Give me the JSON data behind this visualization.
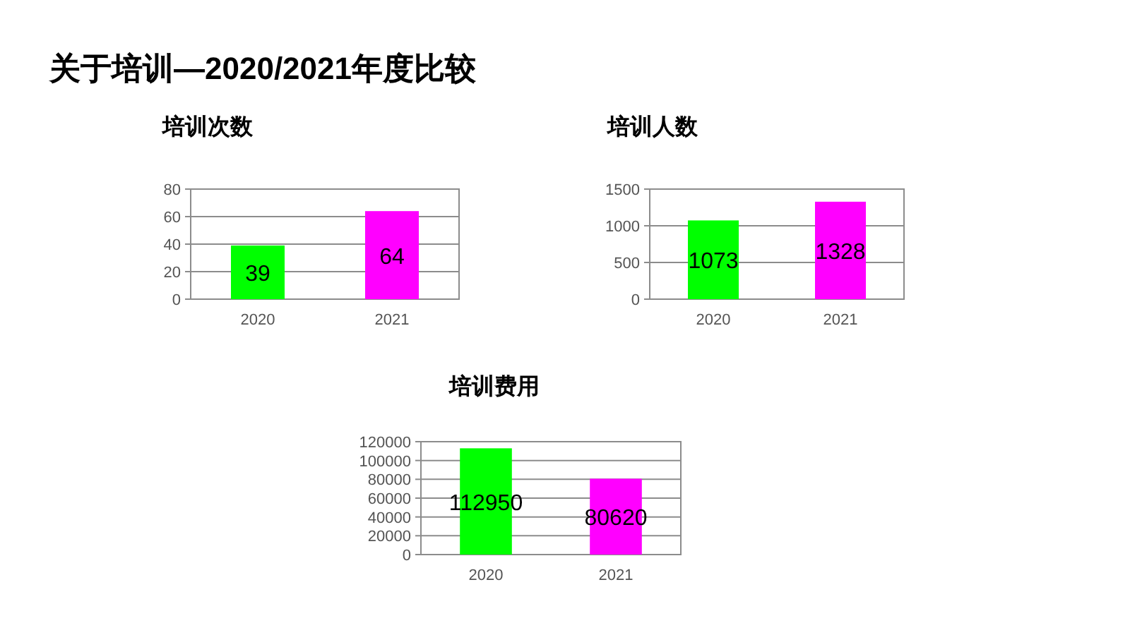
{
  "chart_data": [
    {
      "type": "other",
      "title": "关于培训—2020/2021年度比较"
    },
    {
      "type": "bar",
      "title": "培训次数",
      "categories": [
        "2020",
        "2021"
      ],
      "values": [
        39,
        64
      ],
      "colors": [
        "#00ff00",
        "#ff00ff"
      ],
      "ylim": [
        0,
        80
      ],
      "yticks": [
        0,
        20,
        40,
        60,
        80
      ],
      "grid": "y",
      "data_labels": true
    },
    {
      "type": "bar",
      "title": "培训人数",
      "categories": [
        "2020",
        "2021"
      ],
      "values": [
        1073,
        1328
      ],
      "colors": [
        "#00ff00",
        "#ff00ff"
      ],
      "ylim": [
        0,
        1500
      ],
      "yticks": [
        0,
        500,
        1000,
        1500
      ],
      "grid": "y",
      "data_labels": true
    },
    {
      "type": "bar",
      "title": "培训费用",
      "categories": [
        "2020",
        "2021"
      ],
      "values": [
        112950,
        80620
      ],
      "colors": [
        "#00ff00",
        "#ff00ff"
      ],
      "ylim": [
        0,
        120000
      ],
      "yticks": [
        0,
        20000,
        40000,
        60000,
        80000,
        100000,
        120000
      ],
      "grid": "y",
      "data_labels": true
    }
  ]
}
